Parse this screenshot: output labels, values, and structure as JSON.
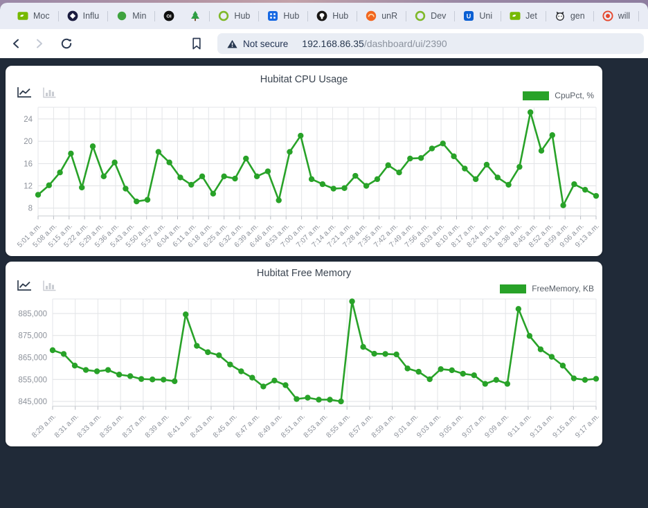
{
  "browser": {
    "bookmarks": [
      {
        "label": "Moc",
        "icon": "nvidia-icon"
      },
      {
        "label": "Influ",
        "icon": "influxdb-icon"
      },
      {
        "label": "Min",
        "icon": "green-dot-icon"
      },
      {
        "label": "",
        "icon": "oi-icon"
      },
      {
        "label": "",
        "icon": "pine-tree-icon"
      },
      {
        "label": "Hub",
        "icon": "hubitat-icon"
      },
      {
        "label": "Hub",
        "icon": "blue-app-icon"
      },
      {
        "label": "Hub",
        "icon": "github-icon"
      },
      {
        "label": "unR",
        "icon": "grafana-icon"
      },
      {
        "label": "Dev",
        "icon": "hubitat-icon"
      },
      {
        "label": "Uni",
        "icon": "unifi-icon"
      },
      {
        "label": "Jet",
        "icon": "nvidia-icon"
      },
      {
        "label": "gen",
        "icon": "cat-icon"
      },
      {
        "label": "will",
        "icon": "shield-icon"
      }
    ],
    "toolbar": {
      "not_secure": "Not secure",
      "url_host": "192.168.86.35",
      "url_path": "/dashboard/ui/2390"
    }
  },
  "chart_data": [
    {
      "type": "line",
      "title": "Hubitat CPU Usage",
      "legend": "CpuPct, %",
      "color": "#28a228",
      "ylim": [
        6.6,
        26.1
      ],
      "yticks": [
        8,
        12,
        16,
        20,
        24
      ],
      "ytick_labels": [
        "8",
        "12",
        "16",
        "20",
        "24"
      ],
      "categories": [
        "5:01 a.m.",
        "5:08 a.m.",
        "5:15 a.m.",
        "5:22 a.m.",
        "5:29 a.m.",
        "5:36 a.m.",
        "5:43 a.m.",
        "5:50 a.m.",
        "5:57 a.m.",
        "6:04 a.m.",
        "6:11 a.m.",
        "6:18 a.m.",
        "6:25 a.m.",
        "6:32 a.m.",
        "6:39 a.m.",
        "6:46 a.m.",
        "6:53 a.m.",
        "7:00 a.m.",
        "7:07 a.m.",
        "7:14 a.m.",
        "7:21 a.m.",
        "7:28 a.m.",
        "7:35 a.m.",
        "7:42 a.m.",
        "7:49 a.m.",
        "7:56 a.m.",
        "8:03 a.m.",
        "8:10 a.m.",
        "8:17 a.m.",
        "8:24 a.m.",
        "8:31 a.m.",
        "8:38 a.m.",
        "8:45 a.m.",
        "8:52 a.m.",
        "8:59 a.m.",
        "9:06 a.m.",
        "9:13 a.m."
      ],
      "values": [
        10.4,
        12.1,
        14.4,
        17.8,
        11.7,
        19.1,
        13.7,
        16.2,
        11.5,
        9.2,
        9.5,
        18.1,
        16.2,
        13.5,
        12.2,
        13.7,
        10.6,
        13.7,
        13.3,
        16.9,
        13.7,
        14.6,
        9.4,
        18.1,
        21.0,
        13.2,
        12.3,
        11.5,
        11.6,
        13.8,
        12.0,
        13.2,
        15.7,
        14.4,
        16.9,
        17.0,
        18.7,
        19.6,
        17.3,
        15.1,
        13.2,
        15.8,
        13.5,
        12.2,
        15.4,
        25.2,
        18.3,
        21.1,
        8.5,
        12.3,
        11.3,
        10.2
      ]
    },
    {
      "type": "line",
      "title": "Hubitat Free Memory",
      "legend": "FreeMemory, KB",
      "color": "#28a228",
      "ylim": [
        842800,
        891600
      ],
      "yticks": [
        845000,
        855000,
        865000,
        875000,
        885000
      ],
      "ytick_labels": [
        "845,000",
        "855,000",
        "865,000",
        "875,000",
        "885,000"
      ],
      "categories": [
        "8:29 a.m.",
        "8:31 a.m.",
        "8:33 a.m.",
        "8:35 a.m.",
        "8:37 a.m.",
        "8:39 a.m.",
        "8:41 a.m.",
        "8:43 a.m.",
        "8:45 a.m.",
        "8:47 a.m.",
        "8:49 a.m.",
        "8:51 a.m.",
        "8:53 a.m.",
        "8:55 a.m.",
        "8:57 a.m.",
        "8:59 a.m.",
        "9:01 a.m.",
        "9:03 a.m.",
        "9:05 a.m.",
        "9:07 a.m.",
        "9:09 a.m.",
        "9:11 a.m.",
        "9:13 a.m.",
        "9:15 a.m.",
        "9:17 a.m."
      ],
      "values": [
        868300,
        866600,
        861300,
        859300,
        858700,
        859300,
        857200,
        856500,
        855200,
        855000,
        854900,
        854200,
        884600,
        870300,
        867400,
        866000,
        861800,
        858700,
        855800,
        851800,
        854500,
        852400,
        846100,
        846700,
        845800,
        845800,
        845000,
        890500,
        869800,
        866700,
        866600,
        866400,
        860000,
        858500,
        855100,
        859700,
        859200,
        857600,
        856900,
        853000,
        854800,
        853000,
        887100,
        874800,
        868700,
        865300,
        861300,
        855500,
        854800,
        855300
      ]
    }
  ]
}
